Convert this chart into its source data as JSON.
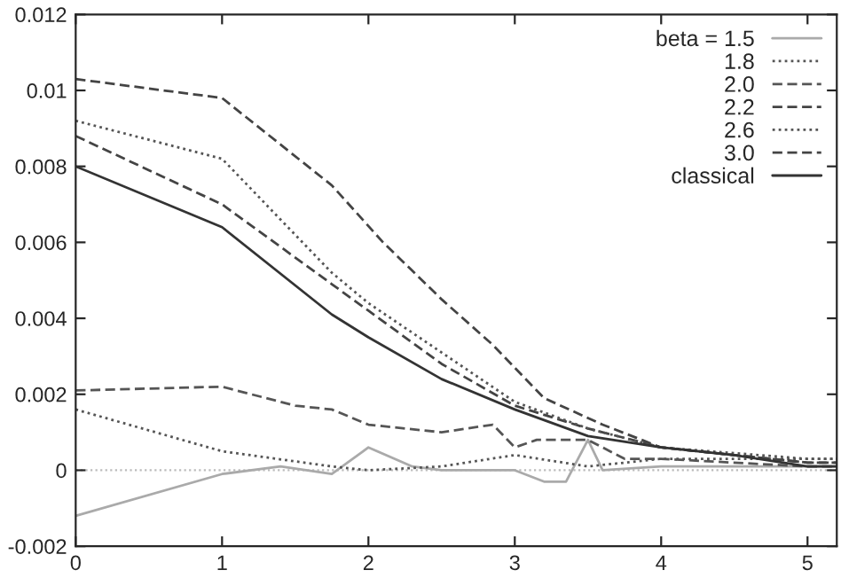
{
  "chart_data": {
    "type": "line",
    "xlim": [
      0,
      5.2
    ],
    "ylim": [
      -0.002,
      0.012
    ],
    "xticks": [
      0,
      1,
      2,
      3,
      4,
      5
    ],
    "yticks": [
      {
        "value": -0.002,
        "label": "-0.002"
      },
      {
        "value": 0,
        "label": "0"
      },
      {
        "value": 0.002,
        "label": "0.002"
      },
      {
        "value": 0.004,
        "label": "0.004"
      },
      {
        "value": 0.006,
        "label": "0.006"
      },
      {
        "value": 0.008,
        "label": "0.008"
      },
      {
        "value": 0.01,
        "label": "0.01"
      },
      {
        "value": 0.012,
        "label": "0.012"
      }
    ],
    "legend": "top right",
    "grid": false,
    "marker": "none",
    "ref_lines": [
      {
        "axis": "y",
        "value": 0,
        "color": "#bbbbbb",
        "line_style": "dotted"
      }
    ],
    "series": [
      {
        "name": "beta = 1.5",
        "color": "#aaaaaa",
        "line_style": "solid",
        "x": [
          0,
          1,
          1.4,
          1.75,
          2,
          2.3,
          2.5,
          3,
          3.2,
          3.35,
          3.5,
          3.6,
          4,
          5,
          5.2
        ],
        "values": [
          -0.0012,
          -0.0001,
          0.0001,
          -0.0001,
          0.0006,
          0.0001,
          0.0,
          0.0,
          -0.0003,
          -0.0003,
          0.0008,
          0.0,
          0.0001,
          0.0001,
          0.0001
        ]
      },
      {
        "name": "1.8",
        "color": "#555555",
        "line_style": "dotted",
        "x": [
          0,
          1,
          1.75,
          2,
          2.5,
          3,
          3.5,
          4,
          5,
          5.2
        ],
        "values": [
          0.0016,
          0.0005,
          0.0001,
          0.0,
          0.0001,
          0.0004,
          0.0001,
          0.0003,
          0.0003,
          0.0003
        ]
      },
      {
        "name": "2.0",
        "color": "#555555",
        "line_style": "dashed",
        "x": [
          0,
          1,
          1.5,
          1.75,
          2,
          2.5,
          2.85,
          3,
          3.15,
          3.5,
          3.75,
          4,
          5,
          5.2
        ],
        "values": [
          0.0021,
          0.0022,
          0.0017,
          0.0016,
          0.0012,
          0.001,
          0.0012,
          0.0006,
          0.0008,
          0.0008,
          0.0003,
          0.0003,
          0.0001,
          0.0001
        ]
      },
      {
        "name": "2.2",
        "color": "#444444",
        "line_style": "dashed",
        "x": [
          0,
          1,
          1.75,
          2,
          2.5,
          3,
          3.5,
          4,
          5,
          5.2
        ],
        "values": [
          0.0088,
          0.007,
          0.0049,
          0.0042,
          0.0028,
          0.0017,
          0.0011,
          0.0006,
          0.0002,
          0.0002
        ]
      },
      {
        "name": "2.6",
        "color": "#555555",
        "line_style": "dotted",
        "x": [
          0,
          1,
          1.75,
          2,
          2.5,
          3,
          3.5,
          4,
          5,
          5.2
        ],
        "values": [
          0.0092,
          0.0082,
          0.0052,
          0.0044,
          0.0031,
          0.0018,
          0.0011,
          0.0006,
          0.0003,
          0.0003
        ]
      },
      {
        "name": "3.0",
        "color": "#444444",
        "line_style": "dashed",
        "x": [
          0,
          1,
          1.75,
          2.1,
          2.5,
          2.85,
          3.2,
          3.6,
          4,
          4.5,
          5,
          5.2
        ],
        "values": [
          0.0103,
          0.0098,
          0.0075,
          0.006,
          0.0045,
          0.0033,
          0.0019,
          0.0012,
          0.0006,
          0.0004,
          0.0002,
          0.0002
        ]
      },
      {
        "name": "classical",
        "color": "#333333",
        "line_style": "solid",
        "x": [
          0,
          1,
          1.75,
          2,
          2.5,
          3,
          3.5,
          4,
          4.5,
          5,
          5.2
        ],
        "values": [
          0.008,
          0.0064,
          0.0041,
          0.0035,
          0.0024,
          0.0016,
          0.0009,
          0.0006,
          0.0004,
          0.0001,
          0.0001
        ]
      }
    ]
  }
}
